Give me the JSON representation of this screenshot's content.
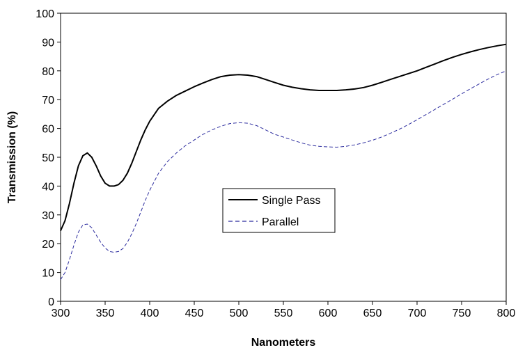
{
  "chart_data": {
    "type": "line",
    "title": "",
    "xlabel": "Nanometers",
    "ylabel": "Transmission (%)",
    "xlim": [
      300,
      800
    ],
    "ylim": [
      0,
      100
    ],
    "xticks": [
      300,
      350,
      400,
      450,
      500,
      550,
      600,
      650,
      700,
      750,
      800
    ],
    "yticks": [
      0,
      10,
      20,
      30,
      40,
      50,
      60,
      70,
      80,
      90,
      100
    ],
    "grid": false,
    "legend_position": "center",
    "series": [
      {
        "name": "Single Pass",
        "color": "#000000",
        "style": "solid",
        "x": [
          300,
          305,
          310,
          315,
          320,
          325,
          330,
          335,
          340,
          345,
          350,
          355,
          360,
          365,
          370,
          375,
          380,
          385,
          390,
          395,
          400,
          410,
          420,
          430,
          440,
          450,
          460,
          470,
          480,
          490,
          500,
          510,
          520,
          530,
          540,
          550,
          560,
          570,
          580,
          590,
          600,
          610,
          620,
          630,
          640,
          650,
          660,
          670,
          680,
          690,
          700,
          710,
          720,
          730,
          740,
          750,
          760,
          770,
          780,
          790,
          800
        ],
        "values": [
          24.5,
          28,
          34,
          41,
          47,
          50.5,
          51.5,
          50,
          47,
          43.5,
          41,
          40,
          40,
          40.5,
          42,
          44.5,
          48,
          52,
          56,
          59.5,
          62.5,
          67,
          69.5,
          71.5,
          73,
          74.5,
          75.8,
          77,
          78,
          78.5,
          78.7,
          78.5,
          78,
          77,
          76,
          75,
          74.3,
          73.8,
          73.4,
          73.2,
          73.2,
          73.2,
          73.4,
          73.7,
          74.2,
          75,
          76,
          77,
          78,
          79,
          80,
          81.2,
          82.4,
          83.6,
          84.7,
          85.7,
          86.6,
          87.4,
          88.1,
          88.7,
          89.2
        ]
      },
      {
        "name": "Parallel",
        "color": "#2b2b9e",
        "style": "dashed",
        "x": [
          300,
          305,
          310,
          315,
          320,
          325,
          330,
          335,
          340,
          345,
          350,
          355,
          360,
          365,
          370,
          375,
          380,
          385,
          390,
          395,
          400,
          410,
          420,
          430,
          440,
          450,
          460,
          470,
          480,
          490,
          500,
          510,
          520,
          530,
          540,
          550,
          560,
          570,
          580,
          590,
          600,
          610,
          620,
          630,
          640,
          650,
          660,
          670,
          680,
          690,
          700,
          710,
          720,
          730,
          740,
          750,
          760,
          770,
          780,
          790,
          800
        ],
        "values": [
          7.5,
          10,
          14.5,
          19.5,
          24,
          26.5,
          26.8,
          25.5,
          23,
          20.5,
          18.5,
          17.3,
          17,
          17.3,
          18.3,
          20.5,
          23.5,
          27,
          31,
          35,
          38.5,
          44.5,
          48.5,
          51.5,
          54,
          56,
          58,
          59.5,
          60.8,
          61.7,
          62,
          61.8,
          61,
          59.5,
          58,
          57,
          56,
          55,
          54.2,
          53.8,
          53.6,
          53.5,
          53.8,
          54.3,
          55,
          55.9,
          57,
          58.3,
          59.7,
          61.3,
          63,
          64.8,
          66.6,
          68.4,
          70.2,
          72,
          73.8,
          75.5,
          77.2,
          78.7,
          80
        ]
      }
    ]
  }
}
